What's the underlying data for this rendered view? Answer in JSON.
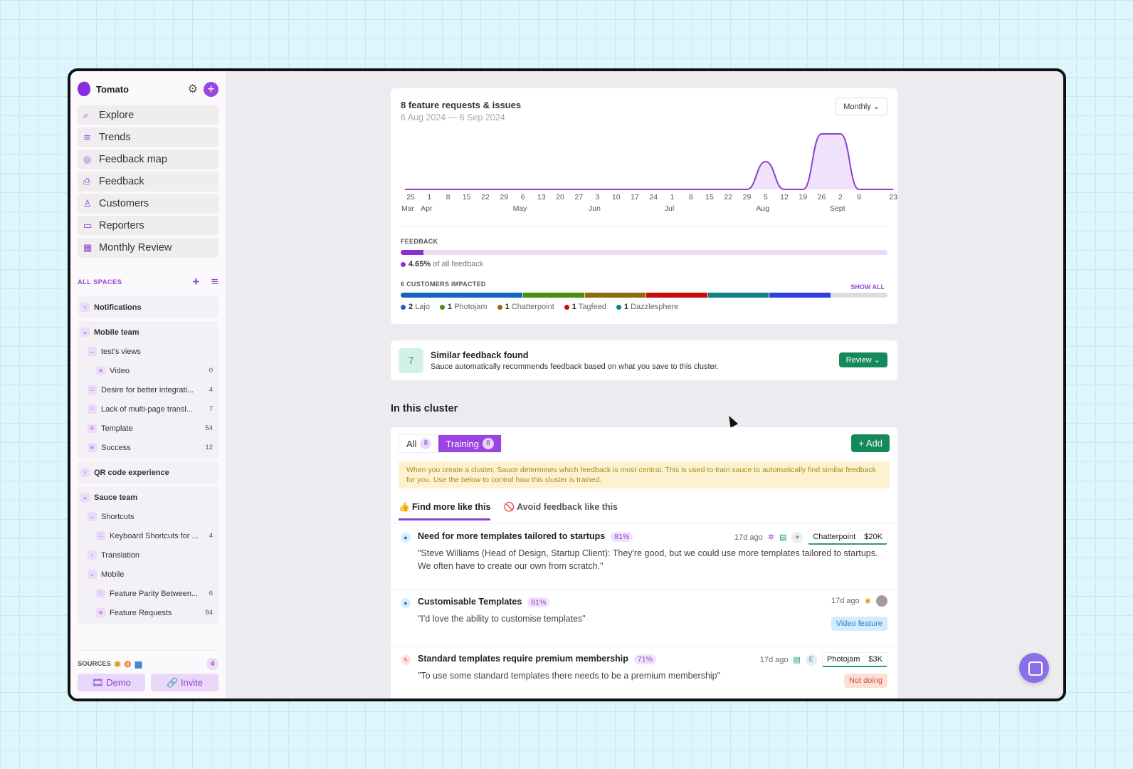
{
  "sidebar": {
    "workspace": "Tomato",
    "nav": [
      {
        "label": "Explore",
        "icon": "search-icon"
      },
      {
        "label": "Trends",
        "icon": "trends-icon"
      },
      {
        "label": "Feedback map",
        "icon": "target-icon"
      },
      {
        "label": "Feedback",
        "icon": "inbox-icon"
      },
      {
        "label": "Customers",
        "icon": "user-icon"
      },
      {
        "label": "Reporters",
        "icon": "message-icon"
      },
      {
        "label": "Monthly Review",
        "icon": "calendar-icon"
      }
    ],
    "spaces_label": "ALL SPACES",
    "groups": [
      {
        "label": "Notifications",
        "expanded": false,
        "rows": []
      },
      {
        "label": "Mobile team",
        "expanded": true,
        "rows": [
          {
            "label": "test's views",
            "type": "folder",
            "level": 1
          },
          {
            "label": "Video",
            "type": "filter",
            "level": 2,
            "count": "0"
          },
          {
            "label": "Desire for better integrati...",
            "type": "cluster",
            "level": 1,
            "count": "4"
          },
          {
            "label": "Lack of multi-page transl...",
            "type": "cluster",
            "level": 1,
            "count": "7"
          },
          {
            "label": "Template",
            "type": "filter",
            "level": 1,
            "count": "54"
          },
          {
            "label": "Success",
            "type": "filter",
            "level": 1,
            "count": "12"
          }
        ]
      },
      {
        "label": "QR code experience",
        "expanded": false,
        "rows": []
      },
      {
        "label": "Sauce team",
        "expanded": true,
        "rows": [
          {
            "label": "Shortcuts",
            "type": "folder",
            "level": 1
          },
          {
            "label": "Keyboard Shortcuts for ...",
            "type": "cluster",
            "level": 2,
            "count": "4"
          },
          {
            "label": "Translation",
            "type": "folder-closed",
            "level": 1
          },
          {
            "label": "Mobile",
            "type": "folder",
            "level": 1
          },
          {
            "label": "Feature Parity Between...",
            "type": "cluster",
            "level": 2,
            "count": "6"
          },
          {
            "label": "Feature Requests",
            "type": "filter",
            "level": 2,
            "count": "84"
          }
        ]
      }
    ],
    "sources_label": "SOURCES",
    "sources_count": "4",
    "demo": "Demo",
    "invite": "Invite"
  },
  "overview": {
    "title": "8 feature requests & issues",
    "date_range": "6 Aug 2024 — 6 Sep 2024",
    "period": "Monthly",
    "feedback_label": "FEEDBACK",
    "feedback_pct_value": 4.65,
    "feedback_pct": "4.65%",
    "feedback_suffix": "of all feedback",
    "customers_label": "6 CUSTOMERS IMPACTED",
    "show_all": "SHOW ALL",
    "customers": [
      {
        "count": "2",
        "name": "Lajo",
        "color": "#1565c0",
        "share": 2
      },
      {
        "count": "1",
        "name": "Photojam",
        "color": "#4a8f14",
        "share": 1
      },
      {
        "count": "1",
        "name": "Chatterpoint",
        "color": "#8f6a0c",
        "share": 1
      },
      {
        "count": "1",
        "name": "Tagfeed",
        "color": "#c40d0d",
        "share": 1
      },
      {
        "count": "1",
        "name": "Dazzlesphere",
        "color": "#12808a",
        "share": 1
      },
      {
        "count": "",
        "name": "",
        "color": "#2f3fe0",
        "share": 1
      }
    ]
  },
  "chart_data": {
    "type": "area",
    "color": "#8b3fd0",
    "x": [
      "25",
      "1",
      "8",
      "15",
      "22",
      "29",
      "6",
      "13",
      "20",
      "27",
      "3",
      "10",
      "17",
      "24",
      "1",
      "8",
      "15",
      "22",
      "29",
      "5",
      "12",
      "19",
      "26",
      "2",
      "9",
      "23"
    ],
    "values": [
      0,
      0,
      0,
      0,
      0,
      0,
      0,
      0,
      0,
      0,
      0,
      0,
      0,
      0,
      0,
      0,
      0,
      0,
      0,
      1,
      0,
      0,
      2,
      2,
      0,
      0
    ],
    "months": [
      {
        "label": "Mar",
        "at": 0
      },
      {
        "label": "Apr",
        "at": 1
      },
      {
        "label": "May",
        "at": 6
      },
      {
        "label": "Jun",
        "at": 10
      },
      {
        "label": "Jul",
        "at": 14
      },
      {
        "label": "Aug",
        "at": 19
      },
      {
        "label": "Sept",
        "at": 23
      }
    ],
    "grid": false
  },
  "similar": {
    "count": "7",
    "title": "Similar feedback found",
    "desc": "Sauce automatically recommends feedback based on what you save to this cluster.",
    "review": "Review"
  },
  "cluster": {
    "heading": "In this cluster",
    "tabs": [
      {
        "label": "All",
        "count": "8"
      },
      {
        "label": "Training",
        "count": "8"
      }
    ],
    "add": "Add",
    "note": "When you create a cluster, Sauce determines which feedback is most central. This is used to train sauce to automatically find similar feedback for you. Use the below to control how this cluster is trained.",
    "find": "Find more like this",
    "avoid": "Avoid feedback like this",
    "items": [
      {
        "title": "Need for more templates tailored to startups",
        "pct": "81%",
        "quote": "\"Steve Williams (Head of Design, Startup Client): They're good, but we could use more templates tailored to startups. We often have to create our own from scratch.\"",
        "age": "17d ago",
        "customer": "Chatterpoint",
        "value": "$20K"
      },
      {
        "title": "Customisable Templates",
        "pct": "81%",
        "quote": "\"I'd love the ability to customise templates\"",
        "age": "17d ago",
        "tag": "Video feature"
      },
      {
        "title": "Standard templates require premium membership",
        "pct": "71%",
        "quote": "\"To use some standard templates there needs to be a premium membership\"",
        "age": "17d ago",
        "avatar": "E",
        "customer": "Photojam",
        "value": "$3K",
        "tag": "Not doing"
      }
    ]
  }
}
